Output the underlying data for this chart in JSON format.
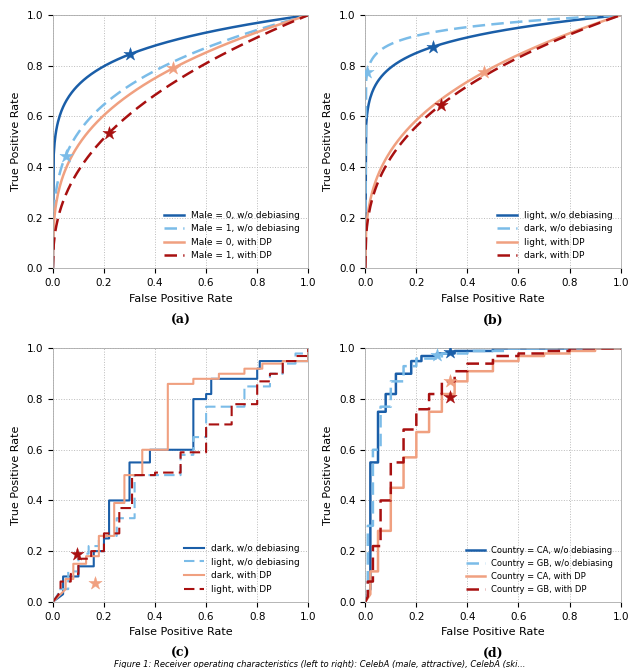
{
  "subplot_labels": [
    "(a)",
    "(b)",
    "(c)",
    "(d)"
  ],
  "subplot_a": {
    "curves": [
      {
        "label": "Male = 0, w/o debiasing",
        "color": "#1a5ea8",
        "style": "solid",
        "lw": 1.8,
        "beta": 4.5,
        "star": [
          0.3,
          0.845
        ]
      },
      {
        "label": "Male = 1, w/o debiasing",
        "color": "#7bbce8",
        "style": "dashed",
        "lw": 1.8,
        "beta": 8.5,
        "star": [
          0.05,
          0.445
        ]
      },
      {
        "label": "Male = 0, with DP",
        "color": "#f0a080",
        "style": "solid",
        "lw": 1.8,
        "beta": 2.2,
        "star": [
          0.47,
          0.79
        ]
      },
      {
        "label": "Male = 1, with DP",
        "color": "#a81010",
        "style": "dashed",
        "lw": 1.8,
        "beta": 2.8,
        "star": [
          0.22,
          0.535
        ]
      }
    ]
  },
  "subplot_b": {
    "curves": [
      {
        "label": "light, w/o debiasing",
        "color": "#1a5ea8",
        "style": "solid",
        "lw": 1.8,
        "beta": 5.5,
        "star": [
          0.265,
          0.875
        ]
      },
      {
        "label": "dark, w/o debiasing",
        "color": "#7bbce8",
        "style": "dashed",
        "lw": 1.8,
        "beta": 12.0,
        "star": [
          0.008,
          0.775
        ]
      },
      {
        "label": "light, with DP",
        "color": "#f0a080",
        "style": "solid",
        "lw": 1.8,
        "beta": 2.0,
        "star": [
          0.465,
          0.775
        ]
      },
      {
        "label": "dark, with DP",
        "color": "#a81010",
        "style": "dashed",
        "lw": 1.8,
        "beta": 2.6,
        "star": [
          0.295,
          0.645
        ]
      }
    ]
  },
  "subplot_c": {
    "curves": [
      {
        "label": "dark, w/o debiasing",
        "color": "#1a5ea8",
        "style": "solid",
        "lw": 1.5,
        "seed": 42
      },
      {
        "label": "light, w/o debiasing",
        "color": "#7bbce8",
        "style": "dashed",
        "lw": 1.5,
        "seed": 7
      },
      {
        "label": "dark, with DP",
        "color": "#f0a080",
        "style": "solid",
        "lw": 1.5,
        "seed": 15,
        "star": [
          0.165,
          0.075
        ]
      },
      {
        "label": "light, with DP",
        "color": "#a81010",
        "style": "dashed",
        "lw": 1.5,
        "seed": 23,
        "star": [
          0.095,
          0.19
        ]
      }
    ]
  },
  "subplot_d": {
    "curves": [
      {
        "label": "Country = CA, w/o debiasing",
        "color": "#1a5ea8",
        "style": "solid",
        "lw": 1.8,
        "seed": 100
      },
      {
        "label": "Country = GB, w/o debiasing",
        "color": "#7bbce8",
        "style": "dashed",
        "lw": 1.8,
        "seed": 101
      },
      {
        "label": "Country = CA, with DP",
        "color": "#f0a080",
        "style": "solid",
        "lw": 1.8,
        "seed": 102
      },
      {
        "label": "Country = GB, with DP",
        "color": "#a81010",
        "style": "dashed",
        "lw": 1.8,
        "seed": 103
      }
    ]
  },
  "xlabel": "False Positive Rate",
  "ylabel": "True Positive Rate",
  "caption": "Figure 1: Receiver operating characteristics (left to right): CelebA (male, attractive), CelebA (ski..."
}
